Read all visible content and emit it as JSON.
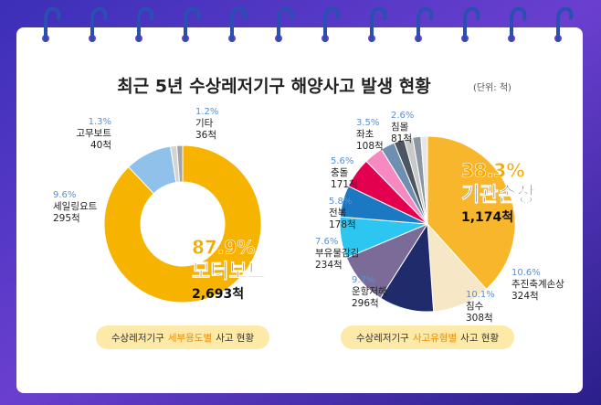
{
  "header": {
    "title": "최근 5년 수상레저기구 해양사고 발생 현황",
    "unit": "(단위: 척)"
  },
  "chart_data": [
    {
      "type": "donut",
      "categories": [
        "모터보트",
        "세일링요트",
        "고무보트",
        "기타"
      ],
      "values": [
        87.9,
        9.6,
        1.3,
        1.2
      ],
      "value_labels": [
        "87.9%",
        "9.6%",
        "1.3%",
        "1.2%"
      ],
      "count_labels": [
        "2,693척",
        "295척",
        "40척",
        "36척"
      ],
      "colors": [
        "#f6b400",
        "#8fc1ea",
        "#d4d4d4",
        "#a3a3a3"
      ],
      "caption": {
        "prefix": "수상레저기구",
        "highlight": "세부용도별",
        "suffix": "사고 현황"
      }
    },
    {
      "type": "pie",
      "categories": [
        "기관손상",
        "추진축계손상",
        "침수",
        "운항저해",
        "부유물감김",
        "전복",
        "충돌",
        "좌초",
        "침몰",
        null,
        null,
        null,
        null
      ],
      "values": [
        38.3,
        10.6,
        10.1,
        9.7,
        7.6,
        5.8,
        5.6,
        3.5,
        2.6,
        1.9,
        1.6,
        1.5,
        1.2
      ],
      "value_labels": [
        "38.3%",
        "10.6%",
        "10.1%",
        "9.7%",
        "7.6%",
        "5.8%",
        "5.6%",
        "3.5%",
        "2.6%",
        null,
        null,
        null,
        null
      ],
      "count_labels": [
        "1,174척",
        "324척",
        "308척",
        "296척",
        "234척",
        "178척",
        "171척",
        "108척",
        "81척",
        null,
        null,
        null,
        null
      ],
      "colors": [
        "#f8b62d",
        "#f6e7c6",
        "#1f2b6a",
        "#7a6b98",
        "#2cc6f1",
        "#1b78c2",
        "#e3004f",
        "#f68ac0",
        "#6f8fb2",
        "#4d5560",
        "#c9c9c9",
        "#8b96a3",
        "#e6e6e6"
      ],
      "caption": {
        "prefix": "수상레저기구",
        "highlight": "사고유형별",
        "suffix": "사고 현황"
      }
    }
  ]
}
